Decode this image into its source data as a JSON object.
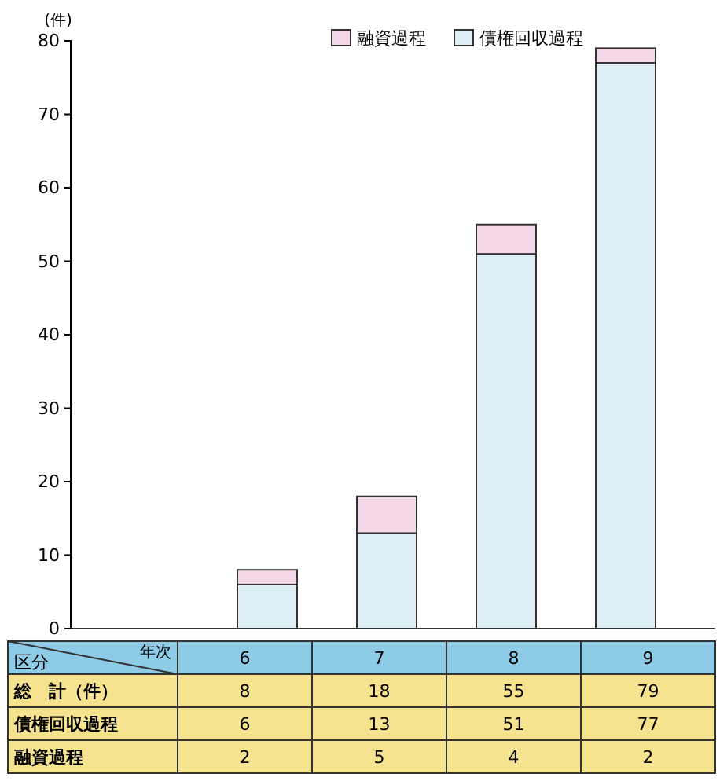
{
  "chart_data": {
    "type": "bar",
    "stacked": true,
    "ylabel": "(件)",
    "categories": [
      "6",
      "7",
      "8",
      "9"
    ],
    "series": [
      {
        "name": "債権回収過程",
        "color": "#ddeef5",
        "values": [
          6,
          13,
          51,
          77
        ]
      },
      {
        "name": "融資過程",
        "color": "#f5d8e8",
        "values": [
          2,
          5,
          4,
          2
        ]
      }
    ],
    "totals": [
      "8",
      "18",
      "55",
      "79"
    ],
    "data_labels": true,
    "ylim": [
      0,
      80
    ],
    "yticks": [
      0,
      10,
      20,
      30,
      40,
      50,
      60,
      70,
      80
    ],
    "legend": "top right",
    "annotations": [
      "区分",
      "年次",
      "総　計（件）"
    ]
  }
}
